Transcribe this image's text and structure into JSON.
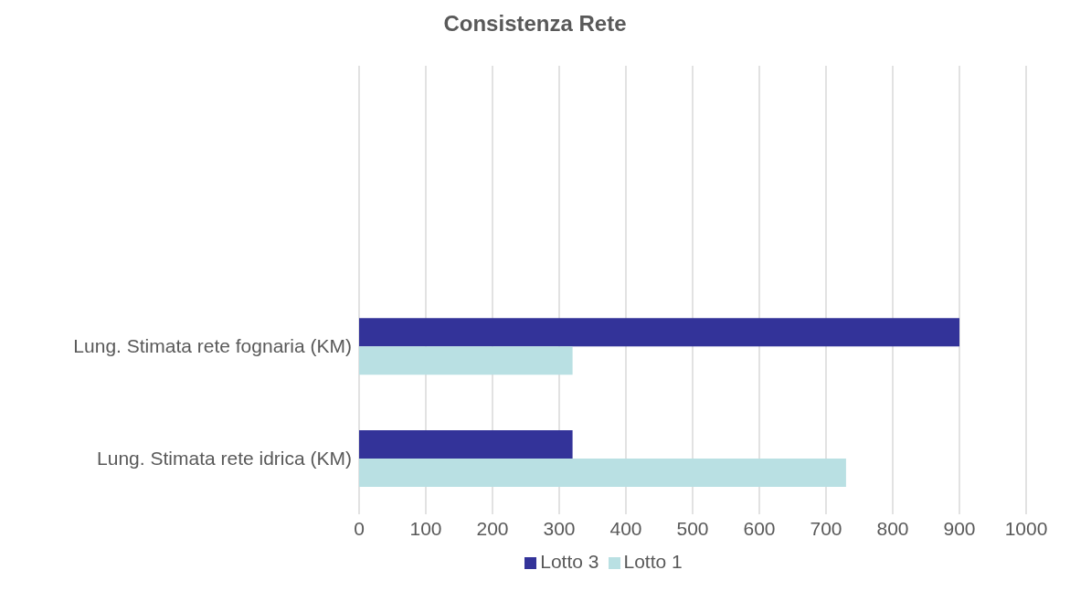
{
  "chart_data": {
    "type": "bar",
    "orientation": "horizontal",
    "title": "Consistenza Rete",
    "categories": [
      null,
      null,
      "Lung. Stimata rete fognaria (KM)",
      "Lung. Stimata rete idrica (KM)"
    ],
    "series": [
      {
        "name": "Lotto 3",
        "color": "#333399",
        "values": [
          null,
          null,
          900,
          320
        ]
      },
      {
        "name": "Lotto 1",
        "color": "#b9e0e3",
        "values": [
          null,
          null,
          320,
          730
        ]
      }
    ],
    "xlim": [
      0,
      1000
    ],
    "xticks": [
      0,
      100,
      200,
      300,
      400,
      500,
      600,
      700,
      800,
      900,
      1000
    ],
    "grid": "x",
    "legend": "bottom"
  }
}
